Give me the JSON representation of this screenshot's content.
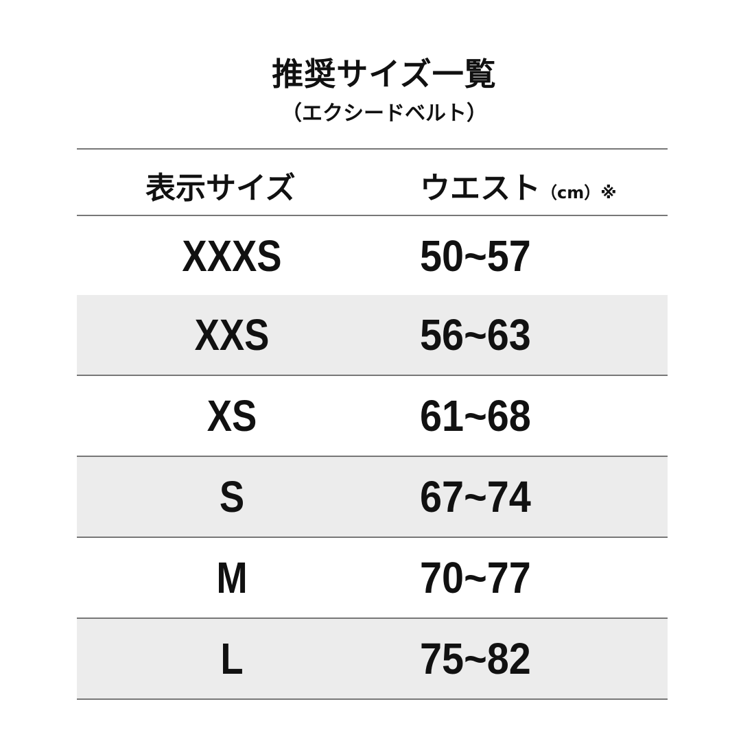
{
  "title": "推奨サイズ一覧",
  "subtitle": "（エクシードベルト）",
  "table": {
    "headers": {
      "size": "表示サイズ",
      "waist": "ウエスト",
      "unit": "（cm）※"
    },
    "rows": [
      {
        "size": "XXXS",
        "waist": "50~57"
      },
      {
        "size": "XXS",
        "waist": "56~63"
      },
      {
        "size": "XS",
        "waist": "61~68"
      },
      {
        "size": "S",
        "waist": "67~74"
      },
      {
        "size": "M",
        "waist": "70~77"
      },
      {
        "size": "L",
        "waist": "75~82"
      }
    ]
  },
  "colors": {
    "stripe": "#ececec",
    "rule": "#777777",
    "text": "#111111"
  }
}
